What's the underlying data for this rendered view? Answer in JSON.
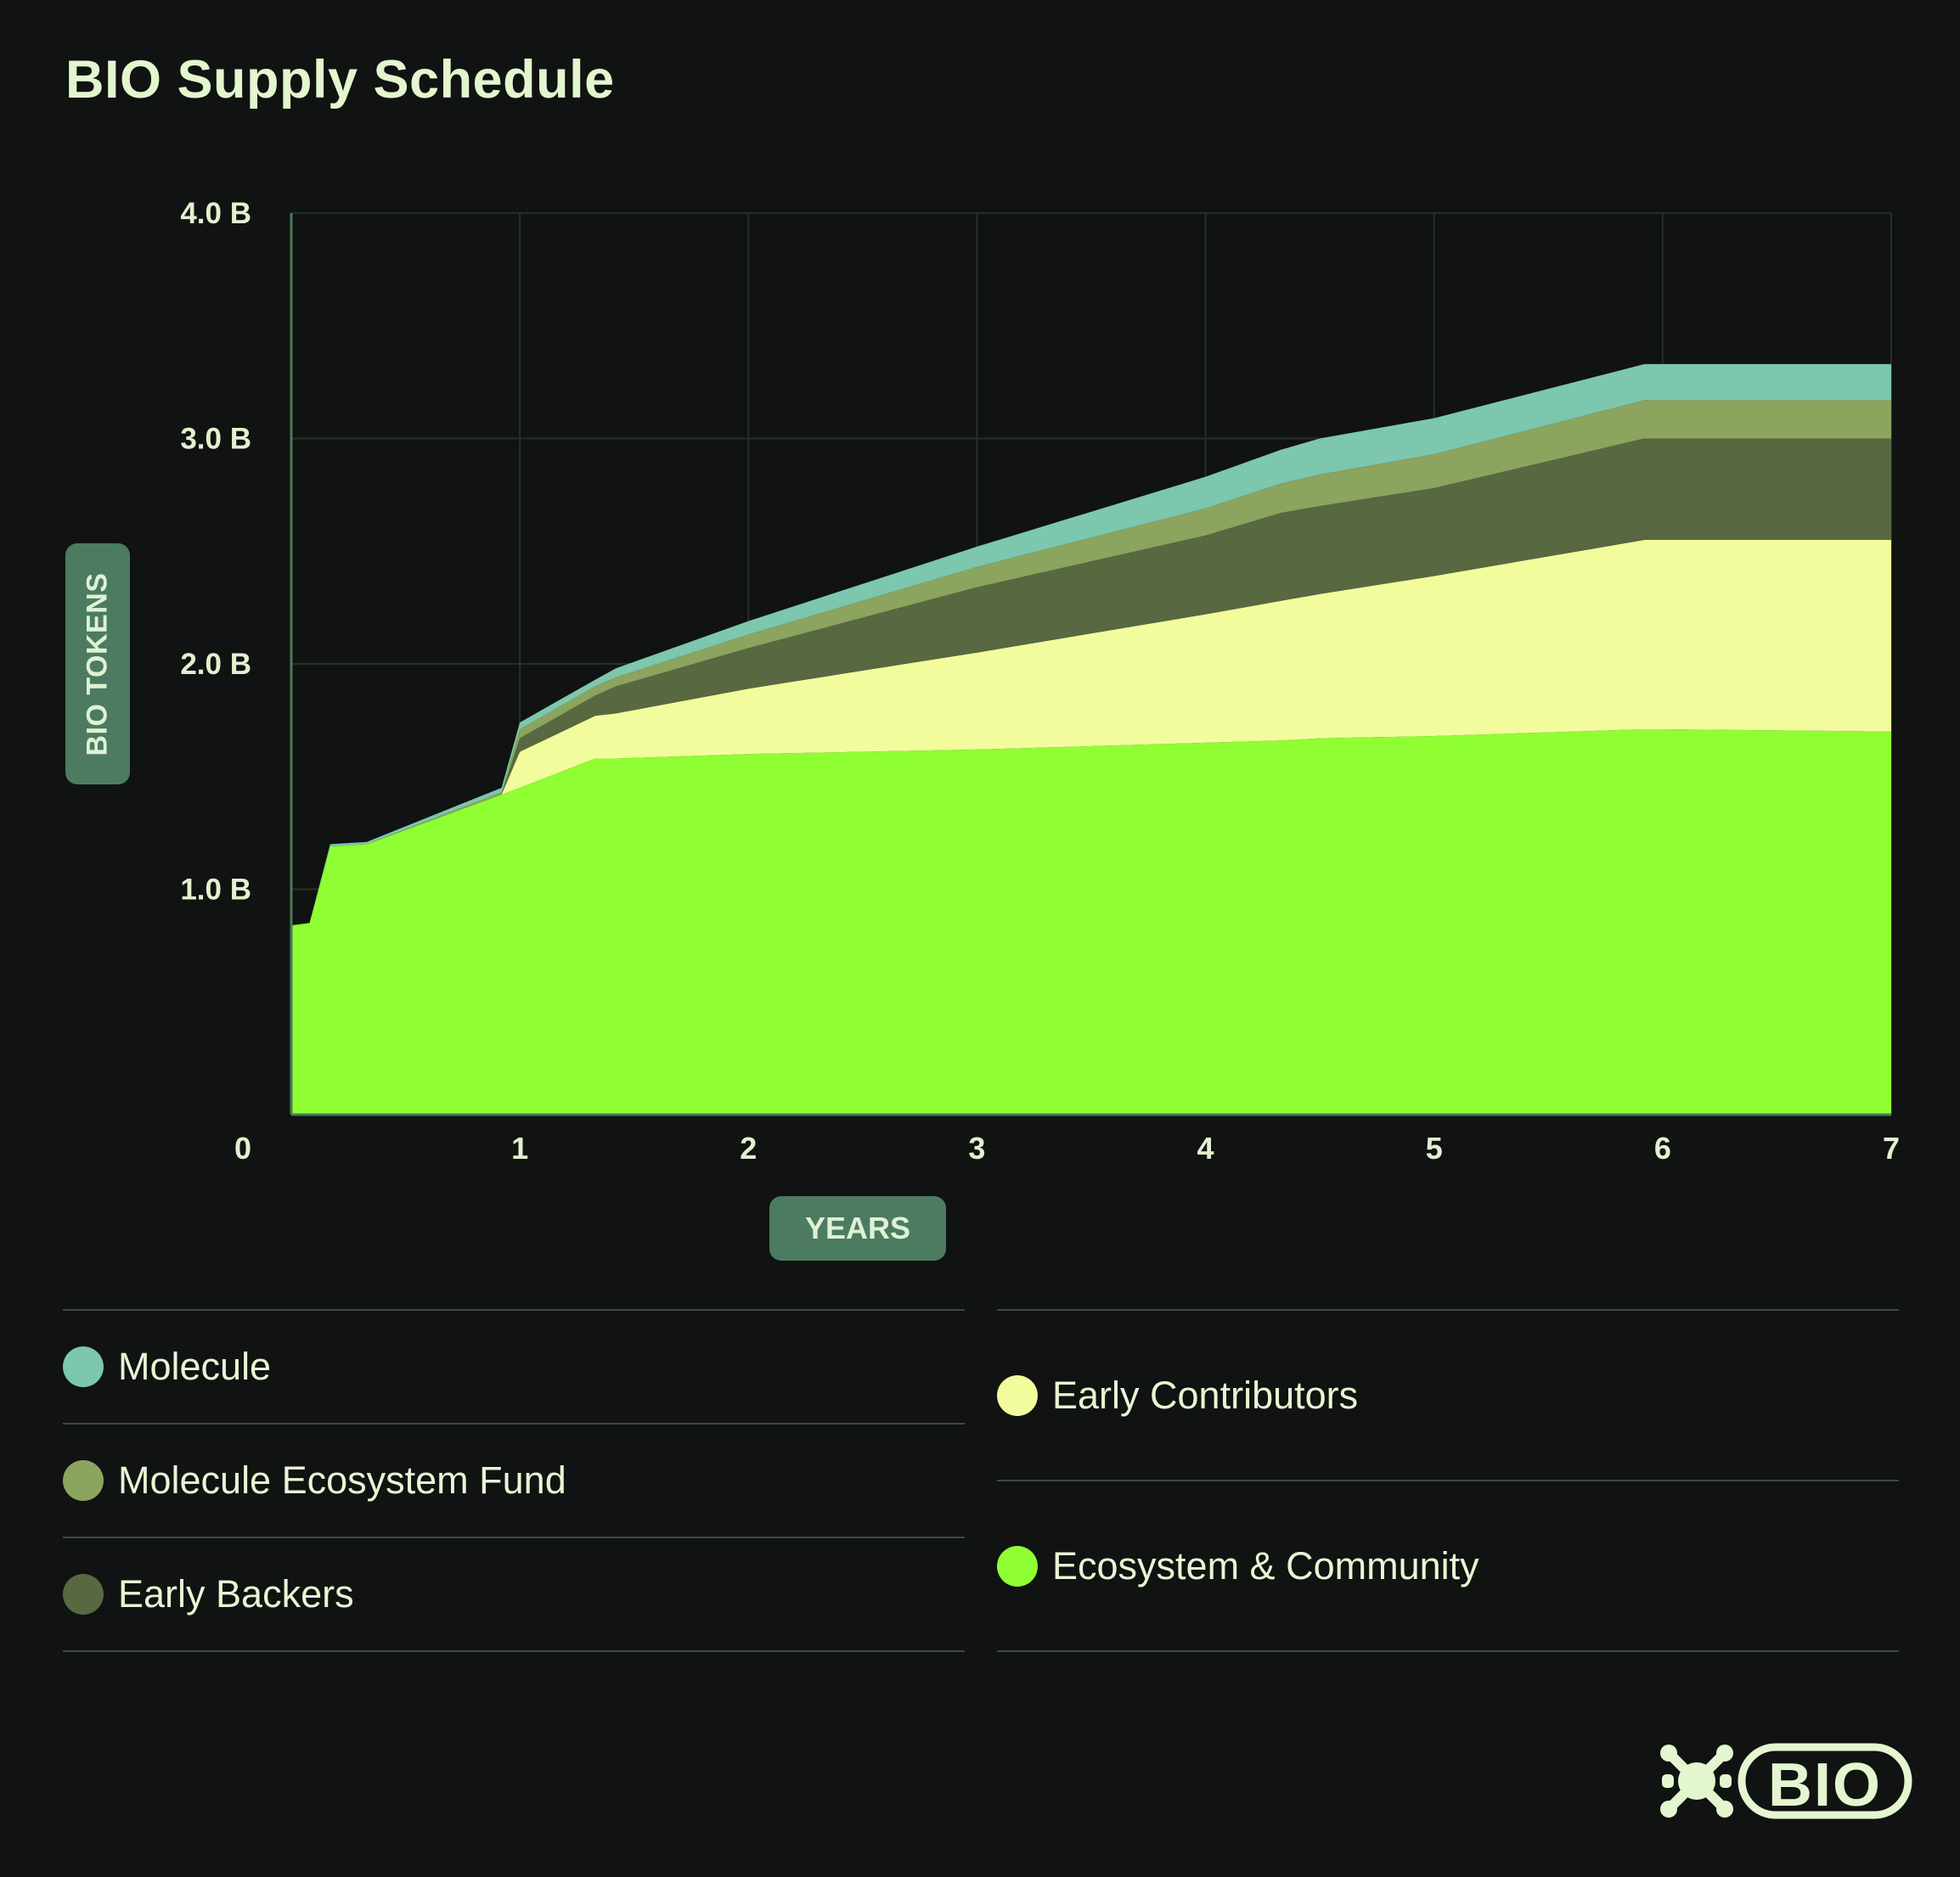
{
  "title": "BIO Supply Schedule",
  "chart_data": {
    "type": "area",
    "stacked": true,
    "title": "BIO Supply Schedule",
    "xlabel": "YEARS",
    "ylabel": "BIO TOKENS",
    "xlim": [
      0,
      7
    ],
    "ylim": [
      0,
      4.0
    ],
    "x_ticks": [
      "0",
      "1",
      "2",
      "3",
      "4",
      "5",
      "6",
      "7"
    ],
    "y_ticks": [
      {
        "value": 1.0,
        "label": "1.0 B"
      },
      {
        "value": 2.0,
        "label": "2.0 B"
      },
      {
        "value": 3.0,
        "label": "3.0 B"
      },
      {
        "value": 4.0,
        "label": "4.0 B"
      }
    ],
    "grid": true,
    "legend_position": "bottom",
    "x": [
      0,
      0.08,
      0.17,
      0.33,
      0.92,
      1.0,
      1.33,
      1.42,
      2.0,
      3.0,
      4.0,
      4.33,
      4.5,
      5.0,
      5.92,
      6.0,
      7.0
    ],
    "series": [
      {
        "name": "Ecosystem & Community",
        "color": "#8ffe32",
        "values": [
          0.84,
          0.85,
          1.19,
          1.2,
          1.42,
          1.45,
          1.58,
          1.58,
          1.6,
          1.62,
          1.65,
          1.66,
          1.67,
          1.68,
          1.71,
          1.71,
          1.7
        ]
      },
      {
        "name": "Early Contributors",
        "color": "#f2fc9d",
        "values": [
          0,
          0,
          0,
          0,
          0,
          0.16,
          0.19,
          0.2,
          0.29,
          0.43,
          0.57,
          0.62,
          0.64,
          0.71,
          0.84,
          0.84,
          0.85
        ]
      },
      {
        "name": "Early Backers",
        "color": "#586840",
        "values": [
          0,
          0,
          0,
          0,
          0,
          0.06,
          0.09,
          0.12,
          0.18,
          0.29,
          0.35,
          0.39,
          0.39,
          0.39,
          0.45,
          0.45,
          0.45
        ]
      },
      {
        "name": "Molecule Ecosystem Fund",
        "color": "#8ba45e",
        "values": [
          0,
          0,
          0,
          0,
          0.01,
          0.04,
          0.04,
          0.04,
          0.06,
          0.09,
          0.12,
          0.13,
          0.14,
          0.15,
          0.17,
          0.17,
          0.17
        ]
      },
      {
        "name": "Molecule",
        "color": "#7cc7ad",
        "values": [
          0,
          0,
          0.01,
          0.01,
          0.02,
          0.03,
          0.03,
          0.04,
          0.06,
          0.09,
          0.14,
          0.15,
          0.16,
          0.16,
          0.16,
          0.16,
          0.16
        ]
      }
    ]
  },
  "legend": {
    "left": [
      {
        "label": "Molecule",
        "color": "#7cc7ad"
      },
      {
        "label": "Molecule Ecosystem Fund",
        "color": "#8ba45e"
      },
      {
        "label": "Early Backers",
        "color": "#586840"
      }
    ],
    "right": [
      {
        "label": "Early Contributors",
        "color": "#f2fc9d"
      },
      {
        "label": "Ecosystem & Community",
        "color": "#8ffe32"
      }
    ]
  },
  "logo": {
    "icon": "bio-logo-icon",
    "text": "BIO",
    "color": "#e3f6cf"
  }
}
